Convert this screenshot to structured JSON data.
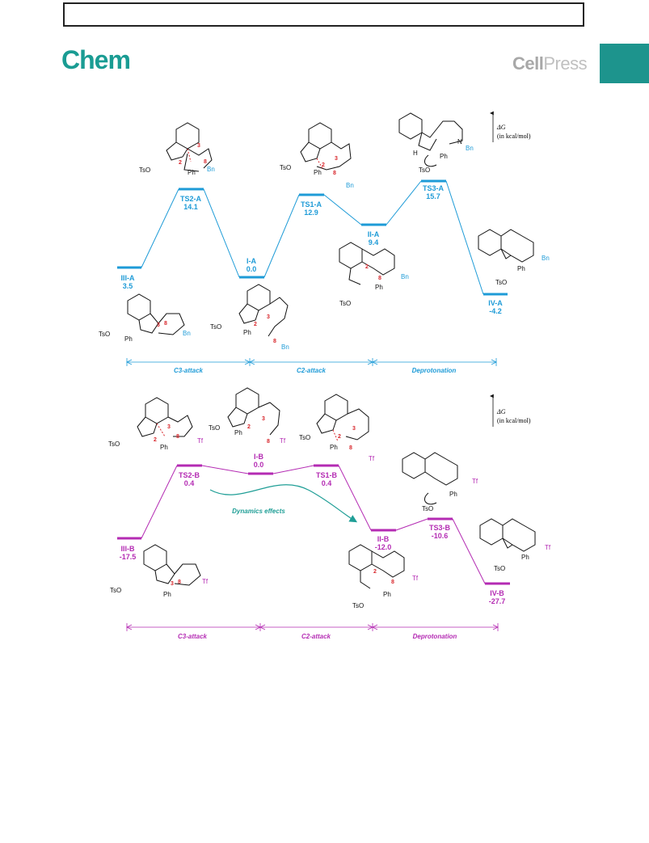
{
  "header": {
    "journal": "Chem",
    "publisher_bold": "Cell",
    "publisher_light": "Press"
  },
  "colors": {
    "blue": "#1e9bd7",
    "magenta": "#b42bb3",
    "teal": "#1f9e96"
  },
  "axis_label": {
    "symbol": "ΔG",
    "unit": "(in kcal/mol)"
  },
  "diagram_a": {
    "levels": [
      {
        "id": "III-A",
        "value": "3.5"
      },
      {
        "id": "TS2-A",
        "value": "14.1"
      },
      {
        "id": "I-A",
        "value": "0.0"
      },
      {
        "id": "TS1-A",
        "value": "12.9"
      },
      {
        "id": "II-A",
        "value": "9.4"
      },
      {
        "id": "TS3-A",
        "value": "15.7"
      },
      {
        "id": "IV-A",
        "value": "-4.2"
      }
    ],
    "stages": [
      "C3-attack",
      "C2-attack",
      "Deprotonation"
    ]
  },
  "diagram_b": {
    "levels": [
      {
        "id": "III-B",
        "value": "-17.5"
      },
      {
        "id": "TS2-B",
        "value": "0.4"
      },
      {
        "id": "I-B",
        "value": "0.0"
      },
      {
        "id": "TS1-B",
        "value": "0.4"
      },
      {
        "id": "II-B",
        "value": "-12.0"
      },
      {
        "id": "TS3-B",
        "value": "-10.6"
      },
      {
        "id": "IV-B",
        "value": "-27.7"
      }
    ],
    "stages": [
      "C3-attack",
      "C2-attack",
      "Deprotonation"
    ],
    "annotation": "Dynamics effects"
  },
  "chem_labels": {
    "tso": "TsO",
    "ph": "Ph",
    "bn": "Bn",
    "tf": "Tf",
    "n": "N",
    "h": "H",
    "plus": "⊕",
    "minus": "⊖",
    "n2": "2",
    "n3": "3",
    "n8": "8"
  }
}
